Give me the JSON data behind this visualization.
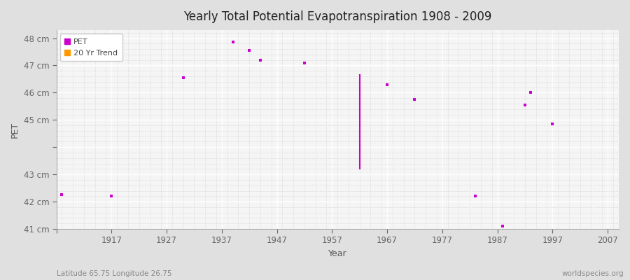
{
  "title": "Yearly Total Potential Evapotranspiration 1908 - 2009",
  "xlabel": "Year",
  "ylabel": "PET",
  "subtitle_left": "Latitude 65.75 Longitude 26.75",
  "subtitle_right": "worldspecies.org",
  "ylim": [
    41.0,
    48.3
  ],
  "xlim": [
    1907,
    2009
  ],
  "yticks": [
    41,
    42,
    43,
    44,
    45,
    46,
    47,
    48
  ],
  "ytick_labels": [
    "41 cm",
    "42 cm",
    "43 cm",
    "",
    "45 cm",
    "46 cm",
    "47 cm",
    "48 cm"
  ],
  "xticks": [
    1907,
    1917,
    1927,
    1937,
    1947,
    1957,
    1967,
    1977,
    1987,
    1997,
    2007
  ],
  "xtick_labels": [
    "",
    "1917",
    "1927",
    "1937",
    "1947",
    "1957",
    "1967",
    "1977",
    "1987",
    "1997",
    "2007"
  ],
  "pet_points_x": [
    1908,
    1917,
    1930,
    1939,
    1942,
    1944,
    1952,
    1967,
    1972,
    1983,
    1988,
    1992,
    1993,
    1997
  ],
  "pet_points_y": [
    42.25,
    42.2,
    46.55,
    47.85,
    47.55,
    47.2,
    47.1,
    46.3,
    45.75,
    42.2,
    41.1,
    45.55,
    46.0,
    44.85
  ],
  "trend_line_x": [
    1962,
    1962
  ],
  "trend_line_y": [
    46.65,
    43.2
  ],
  "pet_color": "#cc00cc",
  "trend_color": "#ff9900",
  "bg_color": "#e0e0e0",
  "plot_bg_color": "#f5f5f5",
  "grid_major_color": "#ffffff",
  "grid_minor_color": "#e8e8e8",
  "legend_label_pet": "PET",
  "legend_label_trend": "20 Yr Trend"
}
